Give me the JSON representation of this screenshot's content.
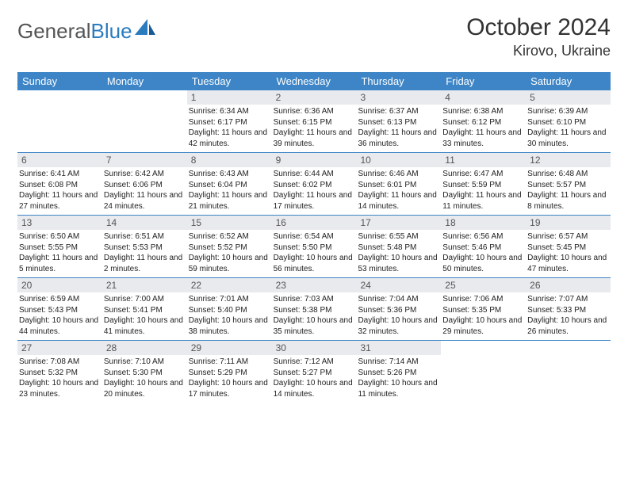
{
  "logo": {
    "text_a": "General",
    "text_b": "Blue",
    "accent": "#2b7bbf"
  },
  "title": "October 2024",
  "location": "Kirovo, Ukraine",
  "colors": {
    "header_bg": "#3d85c6",
    "daynum_bg": "#e8eaed",
    "week_divider": "#3d85c6"
  },
  "daysOfWeek": [
    "Sunday",
    "Monday",
    "Tuesday",
    "Wednesday",
    "Thursday",
    "Friday",
    "Saturday"
  ],
  "weeks": [
    [
      null,
      null,
      {
        "n": "1",
        "sr": "6:34 AM",
        "ss": "6:17 PM",
        "dl": "11 hours and 42 minutes."
      },
      {
        "n": "2",
        "sr": "6:36 AM",
        "ss": "6:15 PM",
        "dl": "11 hours and 39 minutes."
      },
      {
        "n": "3",
        "sr": "6:37 AM",
        "ss": "6:13 PM",
        "dl": "11 hours and 36 minutes."
      },
      {
        "n": "4",
        "sr": "6:38 AM",
        "ss": "6:12 PM",
        "dl": "11 hours and 33 minutes."
      },
      {
        "n": "5",
        "sr": "6:39 AM",
        "ss": "6:10 PM",
        "dl": "11 hours and 30 minutes."
      }
    ],
    [
      {
        "n": "6",
        "sr": "6:41 AM",
        "ss": "6:08 PM",
        "dl": "11 hours and 27 minutes."
      },
      {
        "n": "7",
        "sr": "6:42 AM",
        "ss": "6:06 PM",
        "dl": "11 hours and 24 minutes."
      },
      {
        "n": "8",
        "sr": "6:43 AM",
        "ss": "6:04 PM",
        "dl": "11 hours and 21 minutes."
      },
      {
        "n": "9",
        "sr": "6:44 AM",
        "ss": "6:02 PM",
        "dl": "11 hours and 17 minutes."
      },
      {
        "n": "10",
        "sr": "6:46 AM",
        "ss": "6:01 PM",
        "dl": "11 hours and 14 minutes."
      },
      {
        "n": "11",
        "sr": "6:47 AM",
        "ss": "5:59 PM",
        "dl": "11 hours and 11 minutes."
      },
      {
        "n": "12",
        "sr": "6:48 AM",
        "ss": "5:57 PM",
        "dl": "11 hours and 8 minutes."
      }
    ],
    [
      {
        "n": "13",
        "sr": "6:50 AM",
        "ss": "5:55 PM",
        "dl": "11 hours and 5 minutes."
      },
      {
        "n": "14",
        "sr": "6:51 AM",
        "ss": "5:53 PM",
        "dl": "11 hours and 2 minutes."
      },
      {
        "n": "15",
        "sr": "6:52 AM",
        "ss": "5:52 PM",
        "dl": "10 hours and 59 minutes."
      },
      {
        "n": "16",
        "sr": "6:54 AM",
        "ss": "5:50 PM",
        "dl": "10 hours and 56 minutes."
      },
      {
        "n": "17",
        "sr": "6:55 AM",
        "ss": "5:48 PM",
        "dl": "10 hours and 53 minutes."
      },
      {
        "n": "18",
        "sr": "6:56 AM",
        "ss": "5:46 PM",
        "dl": "10 hours and 50 minutes."
      },
      {
        "n": "19",
        "sr": "6:57 AM",
        "ss": "5:45 PM",
        "dl": "10 hours and 47 minutes."
      }
    ],
    [
      {
        "n": "20",
        "sr": "6:59 AM",
        "ss": "5:43 PM",
        "dl": "10 hours and 44 minutes."
      },
      {
        "n": "21",
        "sr": "7:00 AM",
        "ss": "5:41 PM",
        "dl": "10 hours and 41 minutes."
      },
      {
        "n": "22",
        "sr": "7:01 AM",
        "ss": "5:40 PM",
        "dl": "10 hours and 38 minutes."
      },
      {
        "n": "23",
        "sr": "7:03 AM",
        "ss": "5:38 PM",
        "dl": "10 hours and 35 minutes."
      },
      {
        "n": "24",
        "sr": "7:04 AM",
        "ss": "5:36 PM",
        "dl": "10 hours and 32 minutes."
      },
      {
        "n": "25",
        "sr": "7:06 AM",
        "ss": "5:35 PM",
        "dl": "10 hours and 29 minutes."
      },
      {
        "n": "26",
        "sr": "7:07 AM",
        "ss": "5:33 PM",
        "dl": "10 hours and 26 minutes."
      }
    ],
    [
      {
        "n": "27",
        "sr": "7:08 AM",
        "ss": "5:32 PM",
        "dl": "10 hours and 23 minutes."
      },
      {
        "n": "28",
        "sr": "7:10 AM",
        "ss": "5:30 PM",
        "dl": "10 hours and 20 minutes."
      },
      {
        "n": "29",
        "sr": "7:11 AM",
        "ss": "5:29 PM",
        "dl": "10 hours and 17 minutes."
      },
      {
        "n": "30",
        "sr": "7:12 AM",
        "ss": "5:27 PM",
        "dl": "10 hours and 14 minutes."
      },
      {
        "n": "31",
        "sr": "7:14 AM",
        "ss": "5:26 PM",
        "dl": "10 hours and 11 minutes."
      },
      null,
      null
    ]
  ],
  "labels": {
    "sunrise": "Sunrise:",
    "sunset": "Sunset:",
    "daylight": "Daylight:"
  }
}
